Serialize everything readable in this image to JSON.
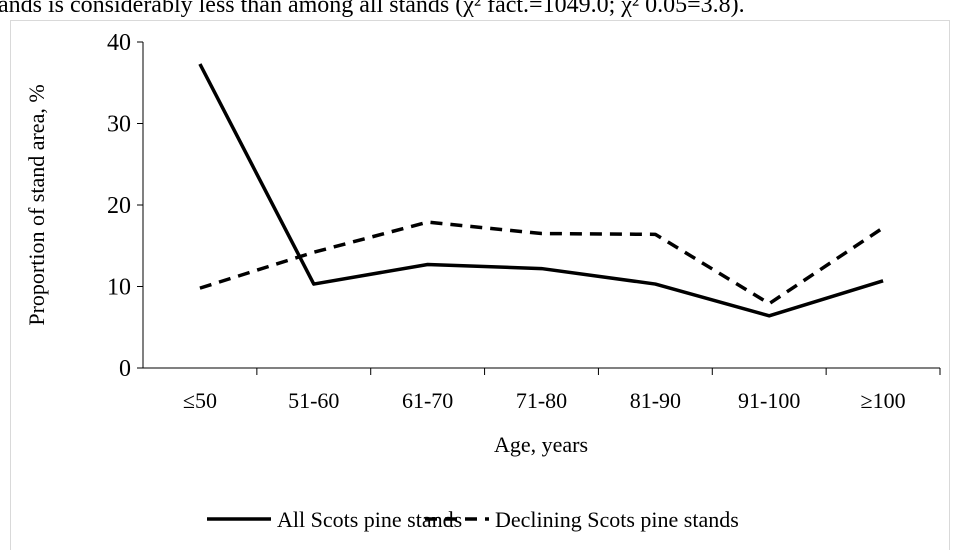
{
  "context_text": "ands is considerably less than among all stands (χ² fact.=1049.0; χ² 0.05=3.8).",
  "chart_data": {
    "type": "line",
    "x_label": "Age, years",
    "y_label": "Proportion of stand area, %",
    "categories": [
      "≤50",
      "51-60",
      "61-70",
      "71-80",
      "81-90",
      "91-100",
      "≥100"
    ],
    "series": [
      {
        "name": "All Scots pine stands",
        "color": "#000000",
        "style": "solid",
        "values": [
          37.3,
          10.3,
          12.7,
          12.2,
          10.3,
          6.4,
          10.7
        ]
      },
      {
        "name": "Declining Scots pine stands",
        "color": "#000000",
        "style": "dashed",
        "values": [
          9.8,
          14.2,
          17.9,
          16.5,
          16.4,
          7.9,
          17.2
        ]
      }
    ],
    "ylim": [
      0,
      40
    ],
    "yticks": [
      0,
      10,
      20,
      30,
      40
    ],
    "grid": false,
    "legend": "bottom"
  }
}
